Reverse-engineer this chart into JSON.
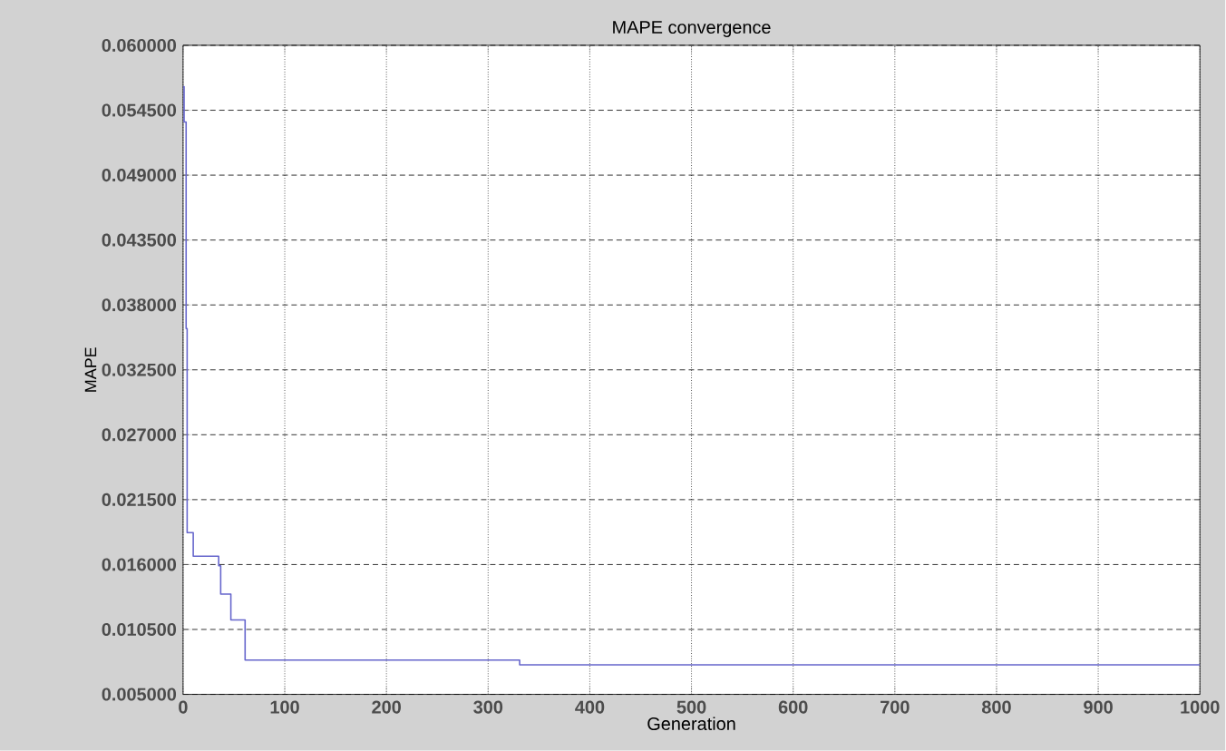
{
  "chart_data": {
    "type": "step",
    "title": "MAPE convergence",
    "xlabel": "Generation",
    "ylabel": "MAPE",
    "x": [
      0,
      1,
      3,
      4,
      10,
      35,
      37,
      47,
      61,
      331,
      1000
    ],
    "series": [
      {
        "color": "#6666cc",
        "values": [
          0.0565,
          0.0535,
          0.036,
          0.0187,
          0.0167,
          0.0159,
          0.0135,
          0.0113,
          0.0079,
          0.0075,
          0.0075
        ]
      }
    ],
    "xlim": [
      0,
      1000
    ],
    "ylim": [
      0.005,
      0.06
    ],
    "xticks": [
      0,
      100,
      200,
      300,
      400,
      500,
      600,
      700,
      800,
      900,
      1000
    ],
    "yticks": [
      {
        "value": 0.005,
        "label": "0.005000"
      },
      {
        "value": 0.0105,
        "label": "0.010500"
      },
      {
        "value": 0.016,
        "label": "0.016000"
      },
      {
        "value": 0.0215,
        "label": "0.021500"
      },
      {
        "value": 0.027,
        "label": "0.027000"
      },
      {
        "value": 0.0325,
        "label": "0.032500"
      },
      {
        "value": 0.038,
        "label": "0.038000"
      },
      {
        "value": 0.0435,
        "label": "0.043500"
      },
      {
        "value": 0.049,
        "label": "0.049000"
      },
      {
        "value": 0.0545,
        "label": "0.054500"
      },
      {
        "value": 0.06,
        "label": "0.060000"
      }
    ],
    "grid": true,
    "line_style": "solid",
    "marker": "none"
  }
}
